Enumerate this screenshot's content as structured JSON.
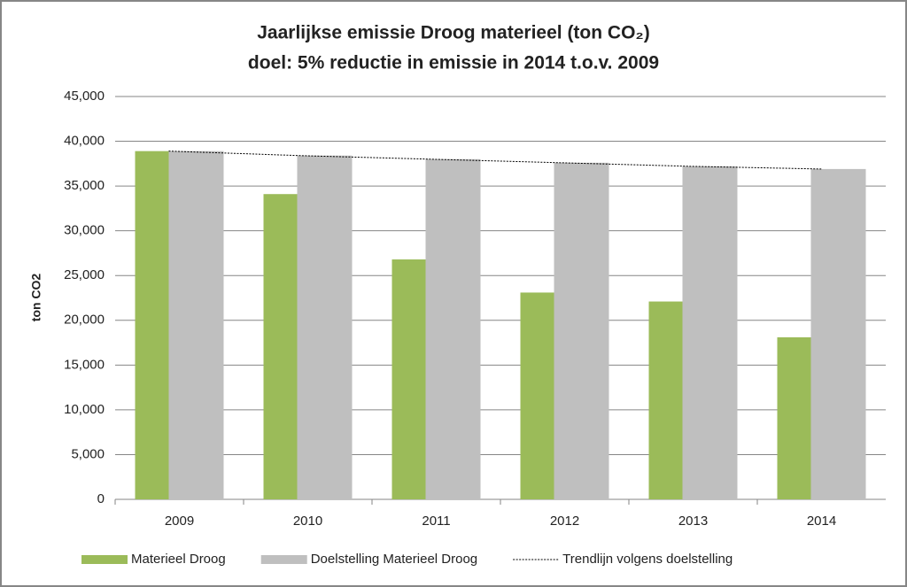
{
  "chart_data": {
    "type": "bar",
    "title": [
      "Jaarlijkse emissie Droog materieel (ton CO₂)",
      "doel: 5% reductie in emissie in 2014 t.o.v. 2009"
    ],
    "y_label": "ton CO2",
    "categories": [
      "2009",
      "2010",
      "2011",
      "2012",
      "2013",
      "2014"
    ],
    "series": [
      {
        "name": "Materieel Droog",
        "type": "bar",
        "color": "#9bbb59",
        "values": [
          38900,
          34100,
          26800,
          23100,
          22100,
          18100
        ]
      },
      {
        "name": "Doelstelling Materieel Droog",
        "type": "bar",
        "color": "#bfbfbf",
        "values": [
          38900,
          38400,
          38000,
          37600,
          37200,
          36900
        ]
      },
      {
        "name": "Trendlijn volgens doelstelling",
        "type": "line",
        "color": "#000000",
        "values": [
          38900,
          38400,
          38000,
          37600,
          37200,
          36900
        ]
      }
    ],
    "ylim": [
      0,
      45000
    ],
    "yticks": [
      0,
      {
        "value": 5000,
        "label": "5,000"
      },
      {
        "value": 10000,
        "label": "10,000"
      },
      {
        "value": 15000,
        "label": "15,000"
      },
      {
        "value": 20000,
        "label": "20,000"
      },
      {
        "value": 25000,
        "label": "25,000"
      },
      {
        "value": 30000,
        "label": "30,000"
      },
      {
        "value": 35000,
        "label": "35,000"
      },
      {
        "value": 40000,
        "label": "40,000"
      },
      {
        "value": 45000,
        "label": "45,000"
      }
    ],
    "grid": true,
    "legend": "bottom"
  }
}
